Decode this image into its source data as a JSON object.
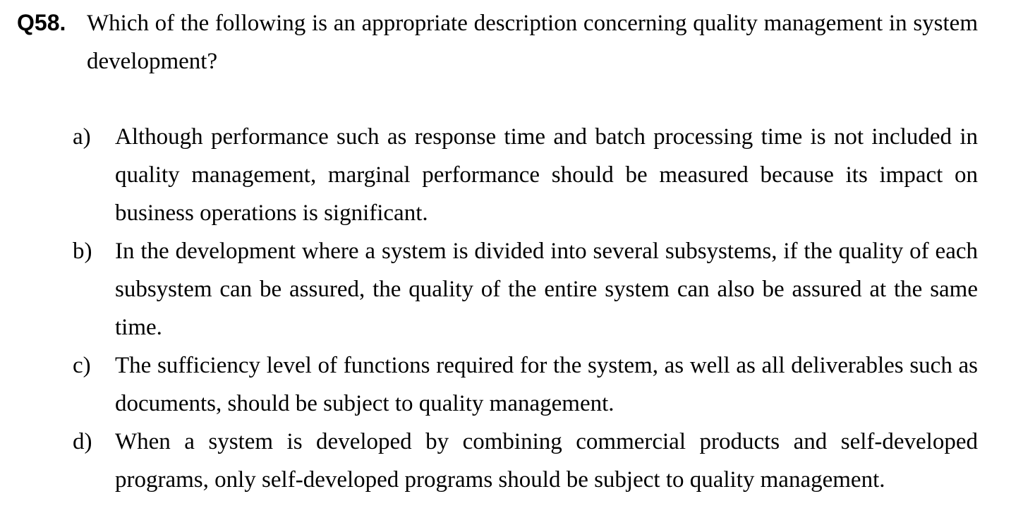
{
  "question": {
    "number": "Q58.",
    "text": "Which of the following is an appropriate description concerning quality management in system development?"
  },
  "options": [
    {
      "letter": "a)",
      "text": "Although performance such as response time and batch processing time is not included in quality management, marginal performance should be measured because its impact on business operations is significant."
    },
    {
      "letter": "b)",
      "text": "In the development where a system is divided into several subsystems, if the quality of each subsystem can be assured, the quality of the entire system can also be assured at the same time."
    },
    {
      "letter": "c)",
      "text": "The sufficiency level of functions required for the system, as well as all deliverables such as documents, should be subject to quality management."
    },
    {
      "letter": "d)",
      "text": "When a system is developed by combining commercial products and self-developed programs, only self-developed programs should be subject to quality management."
    }
  ]
}
